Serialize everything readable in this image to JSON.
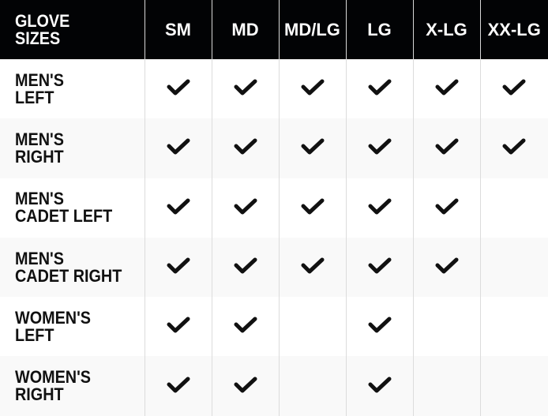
{
  "table": {
    "corner_header": "GLOVE\nSIZES",
    "columns": [
      "SM",
      "MD",
      "MD/LG",
      "LG",
      "X-LG",
      "XX-LG"
    ],
    "check_icon": "checkmark-icon",
    "rows": [
      {
        "label": "MEN'S\nLEFT",
        "available": [
          true,
          true,
          true,
          true,
          true,
          true
        ]
      },
      {
        "label": "MEN'S\nRIGHT",
        "available": [
          true,
          true,
          true,
          true,
          true,
          true
        ]
      },
      {
        "label": "MEN'S\nCADET LEFT",
        "available": [
          true,
          true,
          true,
          true,
          true,
          false
        ]
      },
      {
        "label": "MEN'S\nCADET RIGHT",
        "available": [
          true,
          true,
          true,
          true,
          true,
          false
        ]
      },
      {
        "label": "WOMEN'S\nLEFT",
        "available": [
          true,
          true,
          false,
          true,
          false,
          false
        ]
      },
      {
        "label": "WOMEN'S\nRIGHT",
        "available": [
          true,
          true,
          false,
          true,
          false,
          false
        ]
      }
    ]
  }
}
